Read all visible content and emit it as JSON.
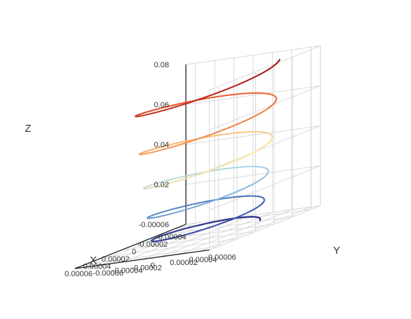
{
  "chart_data": {
    "type": "line3d",
    "xlabel": "X",
    "ylabel": "Y",
    "zlabel": "Z",
    "x_ticks": [
      "-0.00004",
      "-0.00002",
      "0",
      "0.00002",
      "0.00004",
      "0.00006"
    ],
    "y_ticks": [
      "-0.00006",
      "-0.00004",
      "-0.00002",
      "0",
      "0.00002",
      "0.00004",
      "0.00006"
    ],
    "z_ticks": [
      "-0.00006",
      "0.02",
      "0.04",
      "0.06",
      "0.08"
    ],
    "xlim": [
      -5e-05,
      7e-05
    ],
    "ylim": [
      -7e-05,
      7e-05
    ],
    "zlim": [
      0,
      0.08
    ],
    "grid": true,
    "legend": "none",
    "series": [
      {
        "description_of_shape": "",
        "curve": "helix with radius decreasing from ~0.000055 at z=0.08 to ~0.00004 near z=0",
        "turns": 5,
        "z_range": [
          0.0,
          0.078
        ],
        "radius_range": [
          5.5e-05,
          4e-05
        ],
        "colormap": [
          "#1a237e",
          "#3949ab",
          "#5a8fc8",
          "#a9d4ea",
          "#fde8a6",
          "#f8a05a",
          "#e8582d",
          "#a50f15"
        ]
      }
    ]
  }
}
